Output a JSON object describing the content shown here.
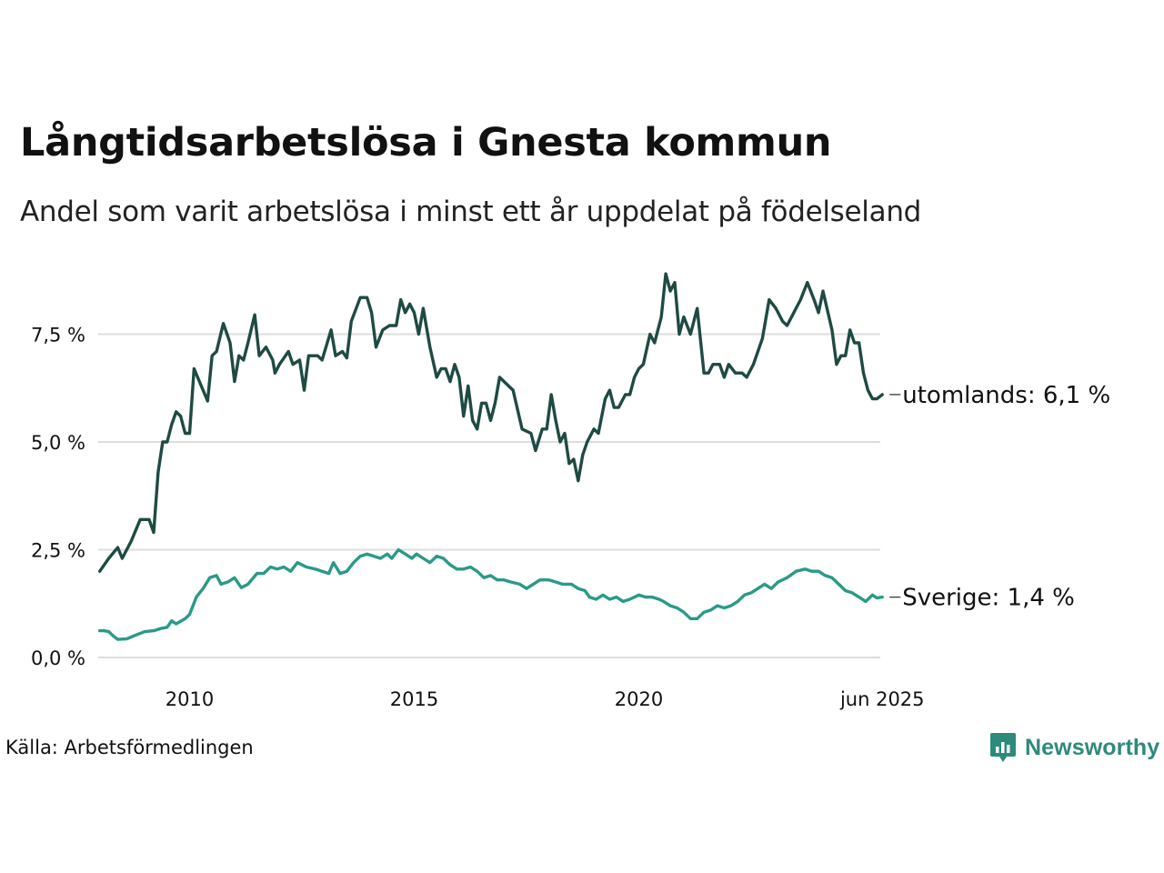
{
  "title": "Långtidsarbetslösa i Gnesta kommun",
  "subtitle": "Andel som varit arbetslösa i minst ett år uppdelat på födelseland",
  "source": "Källa: Arbetsförmedlingen",
  "brand": "Newsworthy",
  "colors": {
    "utomlands": "#1f4a43",
    "sverige": "#2a9a87",
    "grid": "#dddddd",
    "brand": "#2e8a7b"
  },
  "chart_data": {
    "type": "line",
    "title": "Långtidsarbetslösa i Gnesta kommun",
    "subtitle": "Andel som varit arbetslösa i minst ett år uppdelat på födelseland",
    "xlabel": "",
    "ylabel": "",
    "x_range": [
      2008.0,
      2025.5
    ],
    "ylim": [
      0,
      9
    ],
    "y_ticks": [
      {
        "value": 0,
        "label": "0,0 %"
      },
      {
        "value": 2.5,
        "label": "2,5 %"
      },
      {
        "value": 5,
        "label": "5,0 %"
      },
      {
        "value": 7.5,
        "label": "7,5 %"
      }
    ],
    "x_ticks": [
      {
        "value": 2010,
        "label": "2010"
      },
      {
        "value": 2015,
        "label": "2015"
      },
      {
        "value": 2020,
        "label": "2020"
      },
      {
        "value": 2025.42,
        "label": "jun 2025"
      }
    ],
    "grid": true,
    "series": [
      {
        "name": "utomlands",
        "end_label": "utomlands: 6,1 %",
        "color": "#1f4a43",
        "points": [
          [
            2008.0,
            2.0
          ],
          [
            2008.2,
            2.3
          ],
          [
            2008.4,
            2.55
          ],
          [
            2008.5,
            2.3
          ],
          [
            2008.7,
            2.7
          ],
          [
            2008.9,
            3.2
          ],
          [
            2009.1,
            3.2
          ],
          [
            2009.2,
            2.9
          ],
          [
            2009.3,
            4.3
          ],
          [
            2009.4,
            5.0
          ],
          [
            2009.5,
            5.0
          ],
          [
            2009.6,
            5.4
          ],
          [
            2009.7,
            5.7
          ],
          [
            2009.8,
            5.6
          ],
          [
            2009.9,
            5.2
          ],
          [
            2010.0,
            5.2
          ],
          [
            2010.1,
            6.7
          ],
          [
            2010.3,
            6.2
          ],
          [
            2010.4,
            5.95
          ],
          [
            2010.5,
            7.0
          ],
          [
            2010.6,
            7.1
          ],
          [
            2010.75,
            7.75
          ],
          [
            2010.9,
            7.3
          ],
          [
            2011.0,
            6.4
          ],
          [
            2011.1,
            7.0
          ],
          [
            2011.2,
            6.9
          ],
          [
            2011.3,
            7.3
          ],
          [
            2011.45,
            7.95
          ],
          [
            2011.55,
            7.0
          ],
          [
            2011.7,
            7.2
          ],
          [
            2011.85,
            6.9
          ],
          [
            2011.9,
            6.6
          ],
          [
            2012.0,
            6.8
          ],
          [
            2012.2,
            7.1
          ],
          [
            2012.3,
            6.8
          ],
          [
            2012.45,
            6.9
          ],
          [
            2012.55,
            6.2
          ],
          [
            2012.65,
            7.0
          ],
          [
            2012.85,
            7.0
          ],
          [
            2012.95,
            6.9
          ],
          [
            2013.15,
            7.6
          ],
          [
            2013.25,
            7.0
          ],
          [
            2013.4,
            7.1
          ],
          [
            2013.5,
            6.95
          ],
          [
            2013.6,
            7.8
          ],
          [
            2013.8,
            8.35
          ],
          [
            2013.95,
            8.35
          ],
          [
            2014.05,
            8.0
          ],
          [
            2014.15,
            7.2
          ],
          [
            2014.3,
            7.6
          ],
          [
            2014.45,
            7.7
          ],
          [
            2014.6,
            7.7
          ],
          [
            2014.7,
            8.3
          ],
          [
            2014.8,
            8.0
          ],
          [
            2014.9,
            8.2
          ],
          [
            2015.0,
            8.0
          ],
          [
            2015.1,
            7.5
          ],
          [
            2015.2,
            8.1
          ],
          [
            2015.35,
            7.2
          ],
          [
            2015.5,
            6.5
          ],
          [
            2015.6,
            6.7
          ],
          [
            2015.7,
            6.7
          ],
          [
            2015.8,
            6.4
          ],
          [
            2015.9,
            6.8
          ],
          [
            2016.0,
            6.5
          ],
          [
            2016.1,
            5.6
          ],
          [
            2016.2,
            6.3
          ],
          [
            2016.3,
            5.5
          ],
          [
            2016.4,
            5.3
          ],
          [
            2016.5,
            5.9
          ],
          [
            2016.6,
            5.9
          ],
          [
            2016.7,
            5.5
          ],
          [
            2016.8,
            5.9
          ],
          [
            2016.9,
            6.5
          ],
          [
            2017.0,
            6.4
          ],
          [
            2017.2,
            6.2
          ],
          [
            2017.4,
            5.3
          ],
          [
            2017.6,
            5.2
          ],
          [
            2017.7,
            4.8
          ],
          [
            2017.85,
            5.3
          ],
          [
            2017.95,
            5.3
          ],
          [
            2018.05,
            6.1
          ],
          [
            2018.15,
            5.5
          ],
          [
            2018.25,
            5.0
          ],
          [
            2018.35,
            5.2
          ],
          [
            2018.45,
            4.5
          ],
          [
            2018.55,
            4.6
          ],
          [
            2018.65,
            4.1
          ],
          [
            2018.75,
            4.7
          ],
          [
            2018.85,
            5.0
          ],
          [
            2019.0,
            5.3
          ],
          [
            2019.1,
            5.2
          ],
          [
            2019.25,
            6.0
          ],
          [
            2019.35,
            6.2
          ],
          [
            2019.45,
            5.8
          ],
          [
            2019.55,
            5.8
          ],
          [
            2019.7,
            6.1
          ],
          [
            2019.8,
            6.1
          ],
          [
            2019.9,
            6.5
          ],
          [
            2020.0,
            6.7
          ],
          [
            2020.1,
            6.8
          ],
          [
            2020.25,
            7.5
          ],
          [
            2020.35,
            7.3
          ],
          [
            2020.5,
            7.9
          ],
          [
            2020.6,
            8.9
          ],
          [
            2020.7,
            8.5
          ],
          [
            2020.8,
            8.7
          ],
          [
            2020.9,
            7.5
          ],
          [
            2021.0,
            7.9
          ],
          [
            2021.15,
            7.5
          ],
          [
            2021.3,
            8.1
          ],
          [
            2021.45,
            6.6
          ],
          [
            2021.55,
            6.6
          ],
          [
            2021.65,
            6.8
          ],
          [
            2021.8,
            6.8
          ],
          [
            2021.9,
            6.5
          ],
          [
            2022.0,
            6.8
          ],
          [
            2022.15,
            6.6
          ],
          [
            2022.3,
            6.6
          ],
          [
            2022.4,
            6.5
          ],
          [
            2022.55,
            6.8
          ],
          [
            2022.75,
            7.4
          ],
          [
            2022.9,
            8.3
          ],
          [
            2023.05,
            8.1
          ],
          [
            2023.2,
            7.8
          ],
          [
            2023.3,
            7.7
          ],
          [
            2023.45,
            8.0
          ],
          [
            2023.6,
            8.3
          ],
          [
            2023.75,
            8.7
          ],
          [
            2023.9,
            8.3
          ],
          [
            2024.0,
            8.0
          ],
          [
            2024.1,
            8.5
          ],
          [
            2024.3,
            7.6
          ],
          [
            2024.4,
            6.8
          ],
          [
            2024.5,
            7.0
          ],
          [
            2024.6,
            7.0
          ],
          [
            2024.7,
            7.6
          ],
          [
            2024.8,
            7.3
          ],
          [
            2024.9,
            7.3
          ],
          [
            2025.0,
            6.6
          ],
          [
            2025.1,
            6.2
          ],
          [
            2025.2,
            6.0
          ],
          [
            2025.3,
            6.0
          ],
          [
            2025.42,
            6.1
          ]
        ]
      },
      {
        "name": "Sverige",
        "end_label": "Sverige: 1,4 %",
        "color": "#2a9a87",
        "points": [
          [
            2008.0,
            0.62
          ],
          [
            2008.1,
            0.62
          ],
          [
            2008.2,
            0.6
          ],
          [
            2008.3,
            0.5
          ],
          [
            2008.4,
            0.42
          ],
          [
            2008.6,
            0.43
          ],
          [
            2008.8,
            0.52
          ],
          [
            2009.0,
            0.6
          ],
          [
            2009.2,
            0.62
          ],
          [
            2009.35,
            0.67
          ],
          [
            2009.5,
            0.7
          ],
          [
            2009.6,
            0.85
          ],
          [
            2009.7,
            0.78
          ],
          [
            2009.9,
            0.9
          ],
          [
            2010.0,
            1.0
          ],
          [
            2010.15,
            1.4
          ],
          [
            2010.3,
            1.6
          ],
          [
            2010.45,
            1.85
          ],
          [
            2010.6,
            1.9
          ],
          [
            2010.7,
            1.7
          ],
          [
            2010.85,
            1.75
          ],
          [
            2011.0,
            1.85
          ],
          [
            2011.15,
            1.62
          ],
          [
            2011.3,
            1.7
          ],
          [
            2011.5,
            1.95
          ],
          [
            2011.65,
            1.95
          ],
          [
            2011.8,
            2.1
          ],
          [
            2011.95,
            2.05
          ],
          [
            2012.1,
            2.1
          ],
          [
            2012.25,
            2.0
          ],
          [
            2012.4,
            2.2
          ],
          [
            2012.6,
            2.1
          ],
          [
            2012.8,
            2.05
          ],
          [
            2012.95,
            2.0
          ],
          [
            2013.1,
            1.95
          ],
          [
            2013.2,
            2.2
          ],
          [
            2013.35,
            1.95
          ],
          [
            2013.5,
            2.0
          ],
          [
            2013.65,
            2.2
          ],
          [
            2013.8,
            2.35
          ],
          [
            2013.95,
            2.4
          ],
          [
            2014.1,
            2.35
          ],
          [
            2014.25,
            2.3
          ],
          [
            2014.4,
            2.4
          ],
          [
            2014.5,
            2.3
          ],
          [
            2014.65,
            2.5
          ],
          [
            2014.8,
            2.4
          ],
          [
            2014.95,
            2.3
          ],
          [
            2015.05,
            2.4
          ],
          [
            2015.2,
            2.3
          ],
          [
            2015.35,
            2.2
          ],
          [
            2015.5,
            2.35
          ],
          [
            2015.65,
            2.3
          ],
          [
            2015.8,
            2.15
          ],
          [
            2015.95,
            2.05
          ],
          [
            2016.1,
            2.05
          ],
          [
            2016.25,
            2.1
          ],
          [
            2016.4,
            2.0
          ],
          [
            2016.55,
            1.85
          ],
          [
            2016.7,
            1.9
          ],
          [
            2016.85,
            1.8
          ],
          [
            2017.0,
            1.8
          ],
          [
            2017.15,
            1.75
          ],
          [
            2017.35,
            1.7
          ],
          [
            2017.5,
            1.6
          ],
          [
            2017.65,
            1.7
          ],
          [
            2017.8,
            1.8
          ],
          [
            2018.0,
            1.8
          ],
          [
            2018.15,
            1.75
          ],
          [
            2018.3,
            1.7
          ],
          [
            2018.5,
            1.7
          ],
          [
            2018.65,
            1.6
          ],
          [
            2018.8,
            1.55
          ],
          [
            2018.9,
            1.4
          ],
          [
            2019.05,
            1.35
          ],
          [
            2019.2,
            1.45
          ],
          [
            2019.35,
            1.35
          ],
          [
            2019.5,
            1.4
          ],
          [
            2019.65,
            1.3
          ],
          [
            2019.8,
            1.35
          ],
          [
            2020.0,
            1.45
          ],
          [
            2020.15,
            1.4
          ],
          [
            2020.3,
            1.4
          ],
          [
            2020.45,
            1.35
          ],
          [
            2020.55,
            1.3
          ],
          [
            2020.7,
            1.2
          ],
          [
            2020.85,
            1.15
          ],
          [
            2021.0,
            1.05
          ],
          [
            2021.15,
            0.9
          ],
          [
            2021.3,
            0.9
          ],
          [
            2021.45,
            1.05
          ],
          [
            2021.6,
            1.1
          ],
          [
            2021.75,
            1.2
          ],
          [
            2021.9,
            1.15
          ],
          [
            2022.05,
            1.2
          ],
          [
            2022.2,
            1.3
          ],
          [
            2022.35,
            1.45
          ],
          [
            2022.5,
            1.5
          ],
          [
            2022.65,
            1.6
          ],
          [
            2022.8,
            1.7
          ],
          [
            2022.95,
            1.6
          ],
          [
            2023.1,
            1.75
          ],
          [
            2023.3,
            1.85
          ],
          [
            2023.5,
            2.0
          ],
          [
            2023.7,
            2.05
          ],
          [
            2023.85,
            2.0
          ],
          [
            2024.0,
            2.0
          ],
          [
            2024.15,
            1.9
          ],
          [
            2024.3,
            1.85
          ],
          [
            2024.45,
            1.7
          ],
          [
            2024.6,
            1.55
          ],
          [
            2024.75,
            1.5
          ],
          [
            2024.9,
            1.4
          ],
          [
            2025.05,
            1.3
          ],
          [
            2025.2,
            1.45
          ],
          [
            2025.3,
            1.38
          ],
          [
            2025.42,
            1.4
          ]
        ]
      }
    ]
  }
}
